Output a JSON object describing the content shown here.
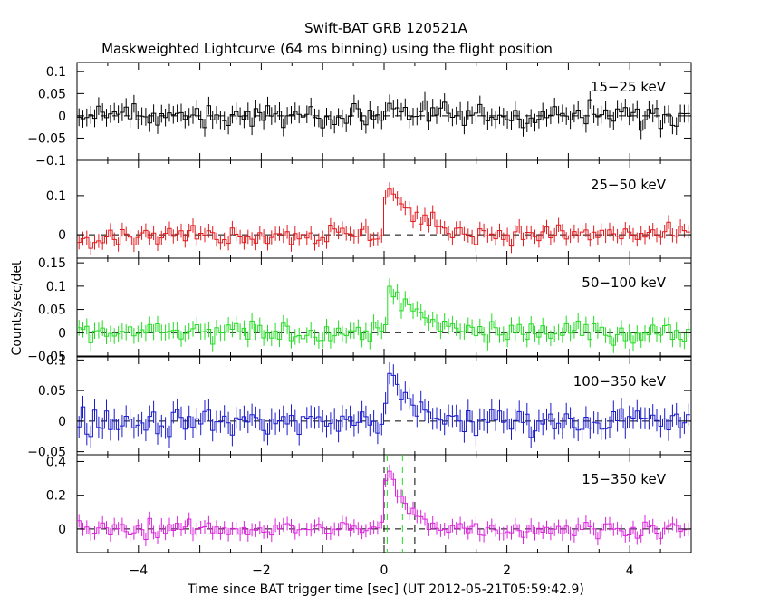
{
  "chart_data": {
    "type": "line",
    "title": "Swift-BAT GRB 120521A",
    "subtitle": "Maskweighted Lightcurve (64 ms binning) using the flight position",
    "xlabel": "Time since BAT trigger time [sec] (UT 2012-05-21T05:59:42.9)",
    "ylabel": "Counts/sec/det",
    "xlim": [
      -5,
      5
    ],
    "x_ticks": [
      -4,
      -2,
      0,
      2,
      4
    ],
    "x_tick_labels": [
      "−4",
      "−2",
      "0",
      "2",
      "4"
    ],
    "bin_width_s": 0.064,
    "panels": [
      {
        "band": "15−25 keV",
        "color": "#000000",
        "ylim": [
          -0.1,
          0.12
        ],
        "y_ticks": [
          -0.1,
          -0.05,
          0,
          0.05,
          0.1
        ],
        "y_tick_labels": [
          "−0.1",
          "−0.05",
          "0",
          "0.05",
          "0.1"
        ],
        "noise_sigma": 0.02,
        "error_bar": 0.02,
        "pulse": {
          "t_peak": 0.1,
          "peak": 0.04,
          "decay_s": 0.2
        }
      },
      {
        "band": "25−50 keV",
        "color": "#e31a1c",
        "ylim": [
          -0.06,
          0.19
        ],
        "y_ticks": [
          0,
          0.1
        ],
        "y_tick_labels": [
          "0",
          "0.1"
        ],
        "noise_sigma": 0.018,
        "error_bar": 0.018,
        "pulse": {
          "t_peak": 0.05,
          "peak": 0.13,
          "decay_s": 0.45
        }
      },
      {
        "band": "50−100 keV",
        "color": "#22dd22",
        "ylim": [
          -0.05,
          0.16
        ],
        "y_ticks": [
          -0.05,
          0,
          0.05,
          0.1,
          0.15
        ],
        "y_tick_labels": [
          "−0.05",
          "0",
          "0.05",
          "0.1",
          "0.15"
        ],
        "noise_sigma": 0.017,
        "error_bar": 0.017,
        "pulse": {
          "t_peak": 0.1,
          "peak": 0.11,
          "decay_s": 0.4
        }
      },
      {
        "band": "100−350 keV",
        "color": "#1a1acc",
        "ylim": [
          -0.055,
          0.105
        ],
        "y_ticks": [
          -0.05,
          0,
          0.05,
          0.1
        ],
        "y_tick_labels": [
          "−0.05",
          "0",
          "0.05",
          "0.1"
        ],
        "noise_sigma": 0.016,
        "error_bar": 0.018,
        "pulse": {
          "t_peak": 0.08,
          "peak": 0.08,
          "decay_s": 0.3
        }
      },
      {
        "band": "15−350 keV",
        "color": "#dd22dd",
        "ylim": [
          -0.14,
          0.44
        ],
        "y_ticks": [
          0,
          0.2,
          0.4
        ],
        "y_tick_labels": [
          "0",
          "0.2",
          "0.4"
        ],
        "noise_sigma": 0.035,
        "error_bar": 0.04,
        "pulse": {
          "t_peak": 0.05,
          "peak": 0.37,
          "decay_s": 0.3
        }
      }
    ],
    "reference_lines": {
      "zero_level": 0,
      "trigger_time": 0,
      "black_dashed_x": [
        0.0,
        0.5
      ],
      "green_dashed_x": [
        0.05,
        0.3
      ]
    }
  },
  "colors": {
    "axis": "#000000",
    "dashed_black": "#000000",
    "dashed_green": "#22dd22"
  }
}
